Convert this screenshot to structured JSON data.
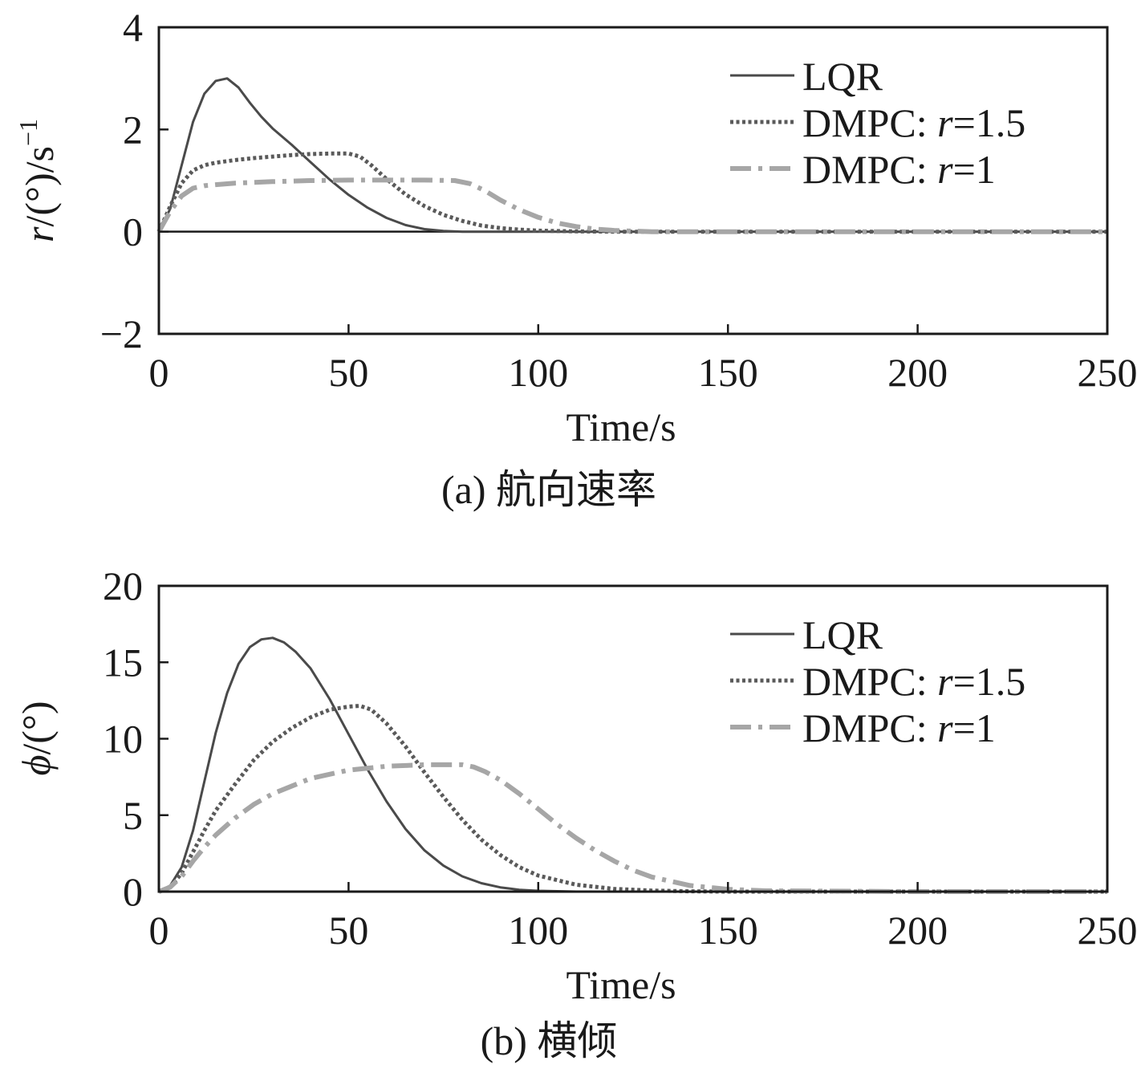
{
  "chart_data": [
    {
      "type": "line",
      "caption": "(a) 航向速率",
      "xlabel": "Time/s",
      "ylabel": "r/(°)/s⁻¹",
      "ylabel_parts": {
        "var": "r",
        "unit": "/(°)/s",
        "sup": "−1"
      },
      "xlim": [
        0,
        250
      ],
      "ylim": [
        -2,
        4
      ],
      "xticks": [
        0,
        50,
        100,
        150,
        200,
        250
      ],
      "yticks": [
        -2,
        0,
        2,
        4
      ],
      "xtick_labels": [
        "0",
        "50",
        "100",
        "150",
        "200",
        "250"
      ],
      "ytick_labels": [
        "−2",
        "0",
        "2",
        "4"
      ],
      "zero_line": true,
      "grid": false,
      "legend": "top-right",
      "series": [
        {
          "name": "LQR",
          "legend_parts": {
            "text": "LQR",
            "var": "",
            "rest": ""
          },
          "color": "#4a4a4a",
          "style": "solid",
          "x": [
            0,
            3,
            6,
            9,
            12,
            15,
            18,
            21,
            24,
            27,
            30,
            35,
            40,
            45,
            50,
            55,
            60,
            65,
            70,
            75,
            80,
            90,
            100,
            120,
            150,
            200,
            250
          ],
          "y": [
            0,
            0.45,
            1.3,
            2.15,
            2.7,
            2.95,
            3.0,
            2.82,
            2.52,
            2.25,
            2.02,
            1.7,
            1.36,
            1.02,
            0.72,
            0.47,
            0.27,
            0.13,
            0.05,
            0.015,
            0,
            0,
            0,
            0,
            0,
            0,
            0
          ]
        },
        {
          "name": "DMPC: r=1.5",
          "legend_parts": {
            "text": "DMPC: ",
            "var": "r",
            "rest": "=1.5"
          },
          "color": "#5a5a5a",
          "style": "dotted",
          "x": [
            0,
            3,
            6,
            9,
            12,
            15,
            20,
            25,
            30,
            35,
            40,
            45,
            50,
            53,
            56,
            60,
            65,
            70,
            75,
            80,
            85,
            90,
            95,
            100,
            110,
            120,
            150,
            200,
            250
          ],
          "y": [
            0,
            0.5,
            0.95,
            1.2,
            1.3,
            1.35,
            1.4,
            1.44,
            1.47,
            1.5,
            1.52,
            1.53,
            1.53,
            1.47,
            1.3,
            1.03,
            0.73,
            0.5,
            0.33,
            0.21,
            0.12,
            0.07,
            0.04,
            0.02,
            0.005,
            0,
            0,
            0,
            0
          ]
        },
        {
          "name": "DMPC: r=1",
          "legend_parts": {
            "text": "DMPC: ",
            "var": "r",
            "rest": "=1"
          },
          "color": "#a6a6a6",
          "style": "dashdot",
          "x": [
            0,
            3,
            6,
            9,
            12,
            15,
            20,
            30,
            40,
            50,
            60,
            70,
            78,
            82,
            86,
            90,
            95,
            100,
            105,
            110,
            115,
            120,
            125,
            130,
            150,
            200,
            250
          ],
          "y": [
            0,
            0.4,
            0.7,
            0.85,
            0.9,
            0.92,
            0.95,
            0.98,
            1.0,
            1.01,
            1.01,
            1.01,
            1.0,
            0.94,
            0.8,
            0.62,
            0.43,
            0.28,
            0.17,
            0.1,
            0.05,
            0.025,
            0.01,
            0,
            0,
            0,
            0
          ]
        }
      ]
    },
    {
      "type": "line",
      "caption": "(b) 横倾",
      "xlabel": "Time/s",
      "ylabel": "ϕ/(°)",
      "ylabel_parts": {
        "var": "ϕ",
        "unit": "/(°)",
        "sup": ""
      },
      "xlim": [
        0,
        250
      ],
      "ylim": [
        0,
        20
      ],
      "xticks": [
        0,
        50,
        100,
        150,
        200,
        250
      ],
      "yticks": [
        0,
        5,
        10,
        15,
        20
      ],
      "xtick_labels": [
        "0",
        "50",
        "100",
        "150",
        "200",
        "250"
      ],
      "ytick_labels": [
        "0",
        "5",
        "10",
        "15",
        "20"
      ],
      "zero_line": false,
      "grid": false,
      "legend": "top-right",
      "series": [
        {
          "name": "LQR",
          "legend_parts": {
            "text": "LQR",
            "var": "",
            "rest": ""
          },
          "color": "#4a4a4a",
          "style": "solid",
          "x": [
            0,
            3,
            6,
            9,
            12,
            15,
            18,
            21,
            24,
            27,
            30,
            33,
            36,
            40,
            45,
            50,
            55,
            60,
            65,
            70,
            75,
            80,
            85,
            90,
            95,
            100,
            110,
            120,
            150,
            200,
            250
          ],
          "y": [
            0,
            0.4,
            1.6,
            4.0,
            7.2,
            10.4,
            13.0,
            14.9,
            16.0,
            16.5,
            16.6,
            16.3,
            15.7,
            14.6,
            12.6,
            10.3,
            8.0,
            5.9,
            4.1,
            2.7,
            1.7,
            1.0,
            0.55,
            0.28,
            0.12,
            0.05,
            0,
            0,
            0,
            0,
            0
          ]
        },
        {
          "name": "DMPC: r=1.5",
          "legend_parts": {
            "text": "DMPC: ",
            "var": "r",
            "rest": "=1.5"
          },
          "color": "#5a5a5a",
          "style": "dotted",
          "x": [
            0,
            3,
            6,
            9,
            12,
            15,
            20,
            25,
            30,
            35,
            40,
            45,
            50,
            53,
            56,
            60,
            65,
            70,
            75,
            80,
            85,
            90,
            95,
            100,
            110,
            120,
            130,
            140,
            150,
            200,
            250
          ],
          "y": [
            0,
            0.3,
            1.2,
            2.6,
            4.0,
            5.3,
            7.0,
            8.6,
            9.8,
            10.7,
            11.4,
            11.9,
            12.1,
            12.15,
            11.9,
            11.0,
            9.5,
            7.8,
            6.2,
            4.7,
            3.4,
            2.4,
            1.6,
            1.05,
            0.45,
            0.18,
            0.07,
            0.02,
            0,
            0,
            0
          ]
        },
        {
          "name": "DMPC: r=1",
          "legend_parts": {
            "text": "DMPC: ",
            "var": "r",
            "rest": "=1"
          },
          "color": "#a6a6a6",
          "style": "dashdot",
          "x": [
            0,
            3,
            6,
            9,
            12,
            15,
            20,
            25,
            30,
            40,
            50,
            60,
            70,
            80,
            83,
            86,
            90,
            95,
            100,
            105,
            110,
            115,
            120,
            125,
            130,
            140,
            150,
            160,
            200,
            250
          ],
          "y": [
            0,
            0.3,
            1.0,
            2.0,
            2.9,
            3.7,
            4.8,
            5.7,
            6.4,
            7.4,
            7.95,
            8.2,
            8.3,
            8.3,
            8.15,
            7.85,
            7.3,
            6.4,
            5.4,
            4.4,
            3.5,
            2.7,
            2.0,
            1.4,
            0.95,
            0.4,
            0.15,
            0.05,
            0,
            0
          ]
        }
      ]
    }
  ]
}
